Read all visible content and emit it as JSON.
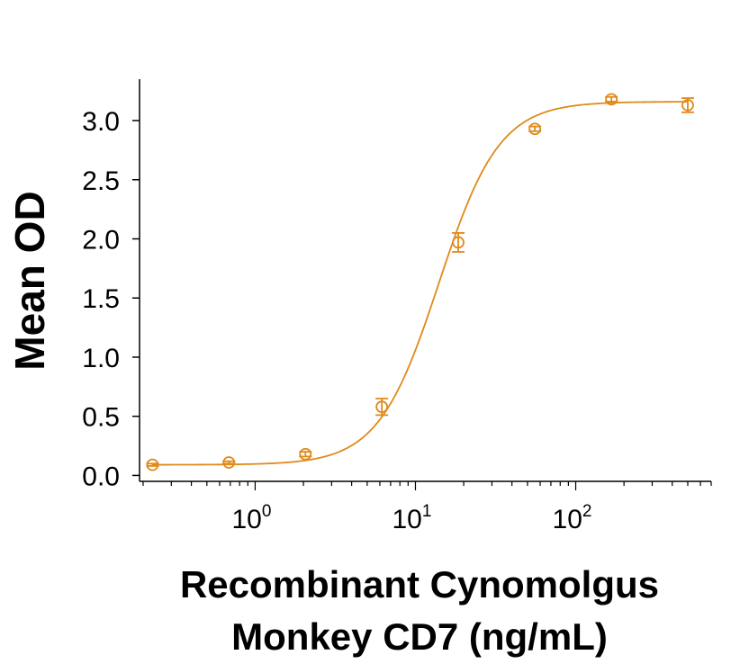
{
  "chart_data": {
    "type": "scatter",
    "xlabel_lines": [
      "Recombinant Cynomolgus",
      "Monkey CD7 (ng/mL)"
    ],
    "ylabel": "Mean OD",
    "x_scale": "log",
    "xlim": [
      0.19,
      700
    ],
    "ylim": [
      -0.05,
      3.35
    ],
    "y_ticks": [
      0.0,
      0.5,
      1.0,
      1.5,
      2.0,
      2.5,
      3.0
    ],
    "y_tick_labels": [
      "0.0",
      "0.5",
      "1.0",
      "1.5",
      "2.0",
      "2.5",
      "3.0"
    ],
    "x_ticks": [
      {
        "value": 1,
        "base": "10",
        "exp": "0"
      },
      {
        "value": 10,
        "base": "10",
        "exp": "1"
      },
      {
        "value": 100,
        "base": "10",
        "exp": "2"
      }
    ],
    "series": [
      {
        "x": [
          0.229,
          0.686,
          2.06,
          6.17,
          18.5,
          55.6,
          167,
          500
        ],
        "y": [
          0.09,
          0.11,
          0.18,
          0.58,
          1.97,
          2.93,
          3.18,
          3.13
        ],
        "err": [
          0.01,
          0.01,
          0.02,
          0.07,
          0.08,
          0.02,
          0.02,
          0.06
        ]
      }
    ],
    "fit": {
      "bottom": 0.09,
      "top": 3.16,
      "ec50": 14.0,
      "hill": 2.3
    },
    "color": "#e08a1b",
    "grid": false,
    "legend": "none"
  }
}
